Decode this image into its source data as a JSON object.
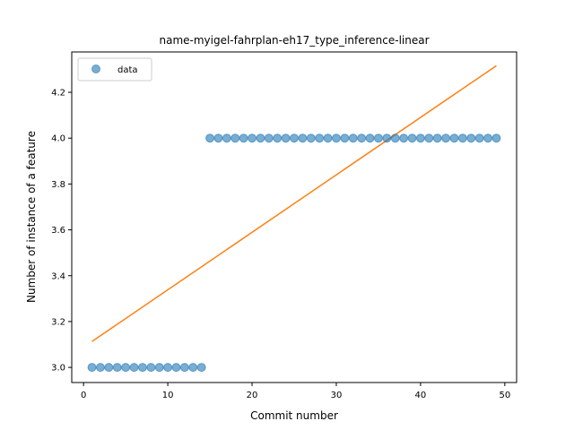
{
  "chart_data": {
    "type": "scatter",
    "title": "name-myigel-fahrplan-eh17_type_inference-linear",
    "xlabel": "Commit number",
    "ylabel": "Number of instance of a feature",
    "xlim": [
      -1.4,
      51.4
    ],
    "ylim": [
      2.934,
      4.376
    ],
    "xticks": [
      0,
      10,
      20,
      30,
      40,
      50
    ],
    "yticks": [
      3.0,
      3.2,
      3.4,
      3.6,
      3.8,
      4.0,
      4.2
    ],
    "ytick_labels": [
      "3.0",
      "3.2",
      "3.4",
      "3.6",
      "3.8",
      "4.0",
      "4.2"
    ],
    "legend": {
      "position": "top-left",
      "entries": [
        "data"
      ]
    },
    "series": [
      {
        "name": "data",
        "kind": "scatter",
        "color": "#1f77b4",
        "x": [
          1,
          2,
          3,
          4,
          5,
          6,
          7,
          8,
          9,
          10,
          11,
          12,
          13,
          14,
          15,
          16,
          17,
          18,
          19,
          20,
          21,
          22,
          23,
          24,
          25,
          26,
          27,
          28,
          29,
          30,
          31,
          32,
          33,
          34,
          35,
          36,
          37,
          38,
          39,
          40,
          41,
          42,
          43,
          44,
          45,
          46,
          47,
          48,
          49
        ],
        "y": [
          3,
          3,
          3,
          3,
          3,
          3,
          3,
          3,
          3,
          3,
          3,
          3,
          3,
          3,
          4,
          4,
          4,
          4,
          4,
          4,
          4,
          4,
          4,
          4,
          4,
          4,
          4,
          4,
          4,
          4,
          4,
          4,
          4,
          4,
          4,
          4,
          4,
          4,
          4,
          4,
          4,
          4,
          4,
          4,
          4,
          4,
          4,
          4,
          4
        ]
      },
      {
        "kind": "line",
        "color": "#ff7f0e",
        "x": [
          1,
          49
        ],
        "y": [
          3.113,
          4.316
        ]
      }
    ]
  }
}
